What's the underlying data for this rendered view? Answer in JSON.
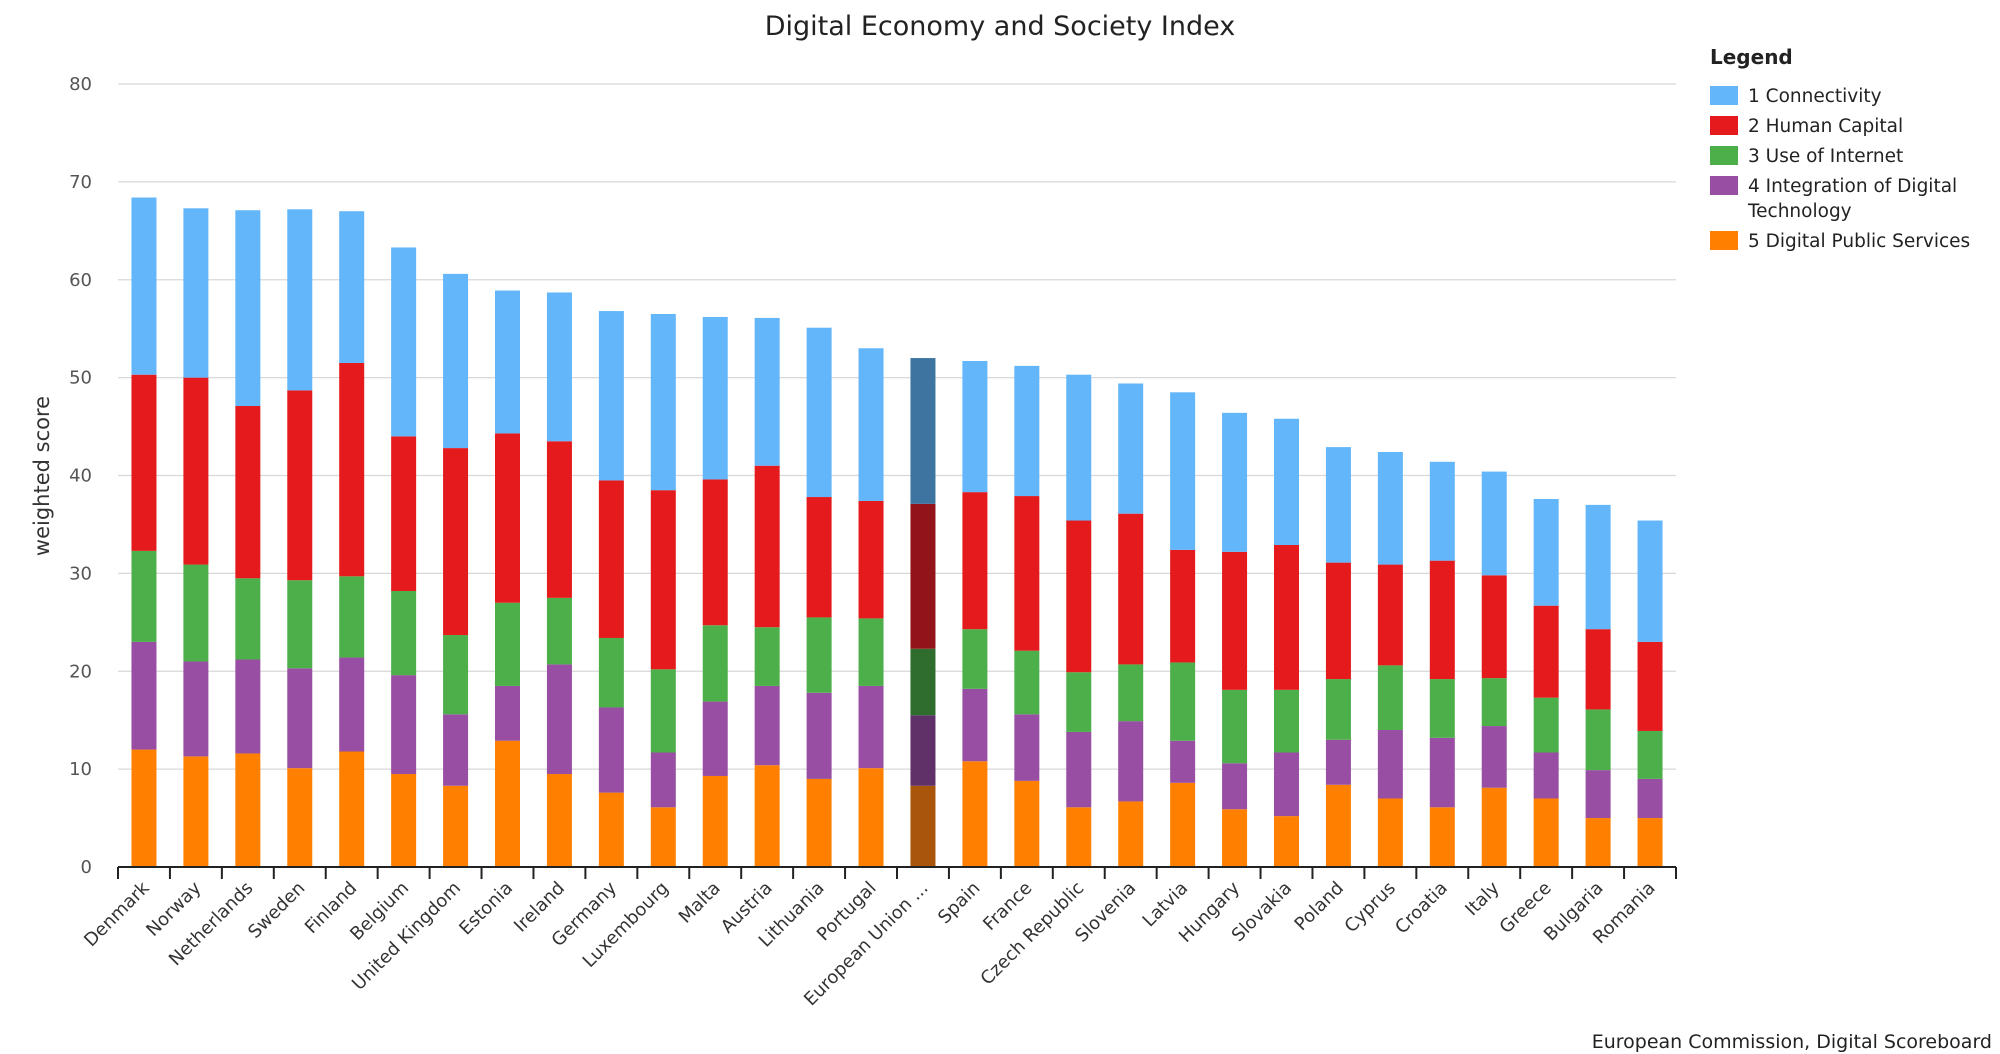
{
  "chart_data": {
    "type": "bar",
    "stacked": true,
    "title": "Digital Economy and Society Index",
    "ylabel": "weighted score",
    "xlabel": "",
    "ylim": [
      0,
      80
    ],
    "yticks": [
      "0",
      "10",
      "20",
      "30",
      "40",
      "50",
      "60",
      "70",
      "80"
    ],
    "grid": true,
    "legend_title": "Legend",
    "legend_position": "top-right",
    "source": "European Commission, Digital Scoreboard",
    "highlight_category": "European Union ...",
    "categories": [
      "Denmark",
      "Norway",
      "Netherlands",
      "Sweden",
      "Finland",
      "Belgium",
      "United Kingdom",
      "Estonia",
      "Ireland",
      "Germany",
      "Luxembourg",
      "Malta",
      "Austria",
      "Lithuania",
      "Portugal",
      "European Union ...",
      "Spain",
      "France",
      "Czech Republic",
      "Slovenia",
      "Latvia",
      "Hungary",
      "Slovakia",
      "Poland",
      "Cyprus",
      "Croatia",
      "Italy",
      "Greece",
      "Bulgaria",
      "Romania"
    ],
    "series": [
      {
        "name": "5 Digital Public Services",
        "color": "#ff8000",
        "highlight_color": "#a9550b",
        "values": [
          12.0,
          11.3,
          11.6,
          10.1,
          11.8,
          9.5,
          8.3,
          12.9,
          9.5,
          7.6,
          6.1,
          9.3,
          10.4,
          9.0,
          10.1,
          8.3,
          10.8,
          8.8,
          6.1,
          6.7,
          8.6,
          5.9,
          5.2,
          8.4,
          7.0,
          6.1,
          8.1,
          7.0,
          5.0,
          5.0
        ]
      },
      {
        "name": "4 Integration of Digital Technology",
        "color": "#984ea3",
        "highlight_color": "#5f3168",
        "values": [
          11.0,
          9.7,
          9.6,
          10.2,
          9.6,
          10.1,
          7.3,
          5.6,
          11.2,
          8.7,
          5.6,
          7.6,
          8.1,
          8.8,
          8.4,
          7.2,
          7.4,
          6.8,
          7.7,
          8.2,
          4.3,
          4.7,
          6.5,
          4.6,
          7.0,
          7.1,
          6.3,
          4.7,
          4.9,
          4.0
        ]
      },
      {
        "name": "3 Use of Internet",
        "color": "#4daf4a",
        "highlight_color": "#2f6d2e",
        "values": [
          9.3,
          9.9,
          8.3,
          9.0,
          8.3,
          8.6,
          8.1,
          8.5,
          6.8,
          7.1,
          8.5,
          7.8,
          6.0,
          7.7,
          6.9,
          6.8,
          6.1,
          6.5,
          6.1,
          5.8,
          8.0,
          7.5,
          6.4,
          6.2,
          6.6,
          6.0,
          4.9,
          5.6,
          6.2,
          4.9
        ]
      },
      {
        "name": "2 Human Capital",
        "color": "#e41a1c",
        "highlight_color": "#92141a",
        "values": [
          18.0,
          19.1,
          17.6,
          19.4,
          21.8,
          15.8,
          19.1,
          17.3,
          16.0,
          16.1,
          18.3,
          14.9,
          16.5,
          12.3,
          12.0,
          14.8,
          14.0,
          15.8,
          15.5,
          15.4,
          11.5,
          14.1,
          14.8,
          11.9,
          10.3,
          12.1,
          10.5,
          9.4,
          8.2,
          9.1
        ]
      },
      {
        "name": "1 Connectivity",
        "color": "#62b6f9",
        "highlight_color": "#3e75a0",
        "values": [
          18.1,
          17.3,
          20.0,
          18.5,
          15.5,
          19.3,
          17.8,
          14.6,
          15.2,
          17.3,
          18.0,
          16.6,
          15.1,
          17.3,
          15.6,
          14.9,
          13.4,
          13.3,
          14.9,
          13.3,
          16.1,
          14.2,
          12.9,
          11.8,
          11.5,
          10.1,
          10.6,
          10.9,
          12.7,
          12.4
        ]
      }
    ]
  }
}
